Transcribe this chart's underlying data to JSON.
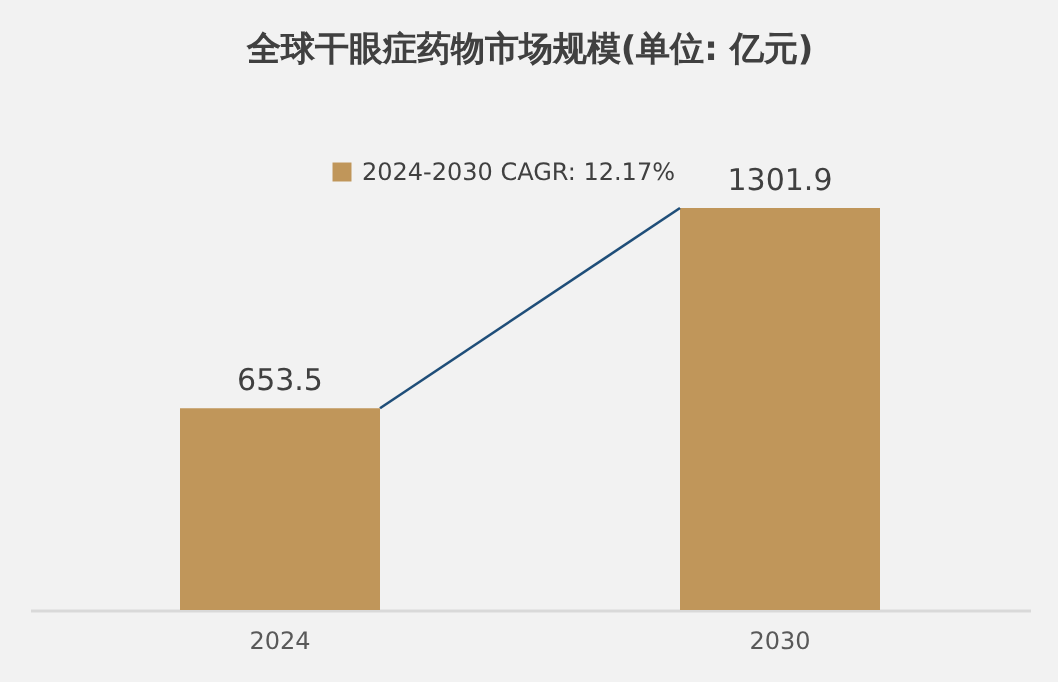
{
  "chart_data": {
    "type": "bar",
    "title": "全球干眼症药物市场规模(单位: 亿元)",
    "categories": [
      "2024",
      "2030"
    ],
    "series": [
      {
        "name": "2024-2030 CAGR: 12.17%",
        "color": "#c0965a",
        "values": [
          653.5,
          1301.9
        ]
      }
    ],
    "data_labels": true,
    "legend": "top",
    "grid": false
  }
}
